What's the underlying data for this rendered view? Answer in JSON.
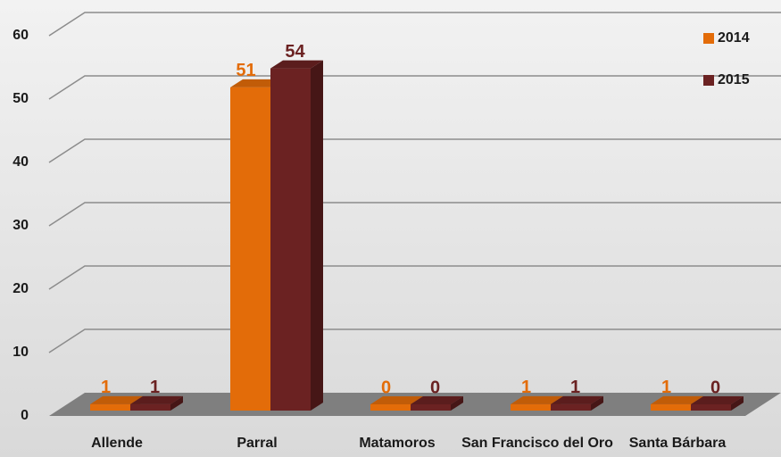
{
  "chart_data": {
    "type": "bar3d",
    "categories": [
      "Allende",
      "Parral",
      "Matamoros",
      "San Francisco del Oro",
      "Santa Bárbara"
    ],
    "series": [
      {
        "name": "2014",
        "color": "#e36c09",
        "values": [
          1,
          51,
          0,
          1,
          1
        ]
      },
      {
        "name": "2015",
        "color": "#6b2222",
        "values": [
          1,
          54,
          0,
          1,
          0
        ]
      }
    ],
    "ylim": [
      0,
      60
    ],
    "yticks": [
      0,
      10,
      20,
      30,
      40,
      50,
      60
    ],
    "grid": true,
    "legend": "top-right"
  }
}
